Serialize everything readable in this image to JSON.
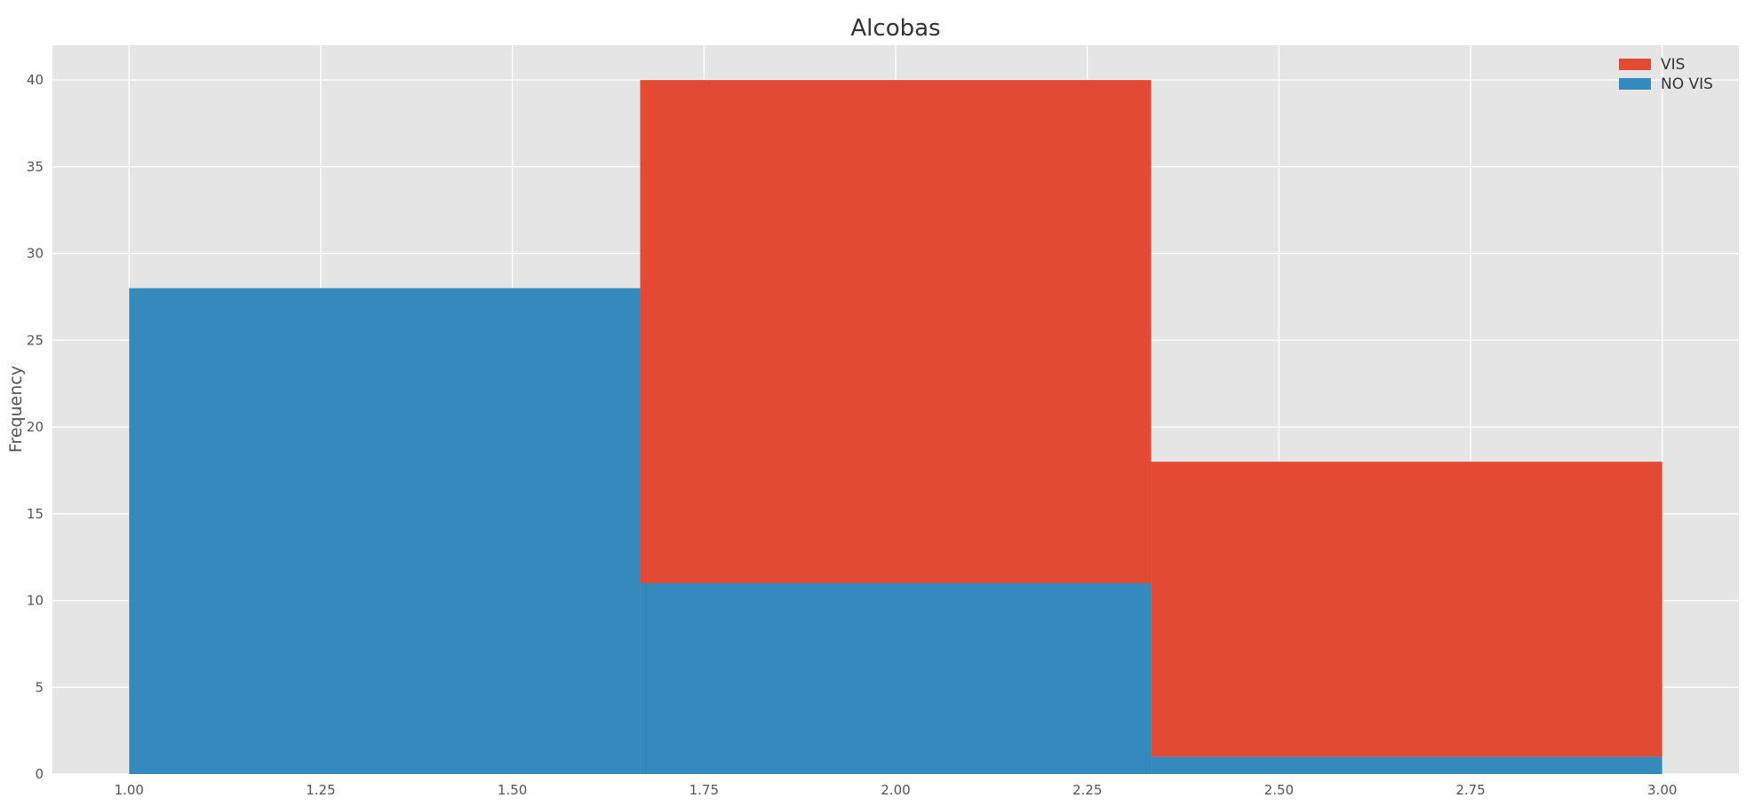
{
  "chart_data": {
    "type": "bar",
    "title": "Alcobas",
    "xlabel": "",
    "ylabel": "Frequency",
    "xlim": [
      0.9,
      3.1
    ],
    "ylim": [
      0,
      42
    ],
    "x_ticks": [
      {
        "value": 1.0,
        "label": "1.00"
      },
      {
        "value": 1.25,
        "label": "1.25"
      },
      {
        "value": 1.5,
        "label": "1.50"
      },
      {
        "value": 1.75,
        "label": "1.75"
      },
      {
        "value": 2.0,
        "label": "2.00"
      },
      {
        "value": 2.25,
        "label": "2.25"
      },
      {
        "value": 2.5,
        "label": "2.50"
      },
      {
        "value": 2.75,
        "label": "2.75"
      },
      {
        "value": 3.0,
        "label": "3.00"
      }
    ],
    "y_ticks": [
      {
        "value": 0,
        "label": "0"
      },
      {
        "value": 5,
        "label": "5"
      },
      {
        "value": 10,
        "label": "10"
      },
      {
        "value": 15,
        "label": "15"
      },
      {
        "value": 20,
        "label": "20"
      },
      {
        "value": 25,
        "label": "25"
      },
      {
        "value": 30,
        "label": "30"
      },
      {
        "value": 35,
        "label": "35"
      },
      {
        "value": 40,
        "label": "40"
      }
    ],
    "grid": true,
    "stacked": true,
    "bins": [
      [
        1.0,
        1.6667
      ],
      [
        1.6667,
        2.3333
      ],
      [
        2.3333,
        3.0
      ]
    ],
    "series": [
      {
        "name": "NO VIS",
        "color": "#348abd",
        "values": [
          28,
          11,
          1
        ]
      },
      {
        "name": "VIS",
        "color": "#e24a33",
        "values": [
          0,
          29,
          17
        ]
      }
    ],
    "legend": {
      "position": "top-right",
      "order": [
        "VIS",
        "NO VIS"
      ]
    }
  }
}
